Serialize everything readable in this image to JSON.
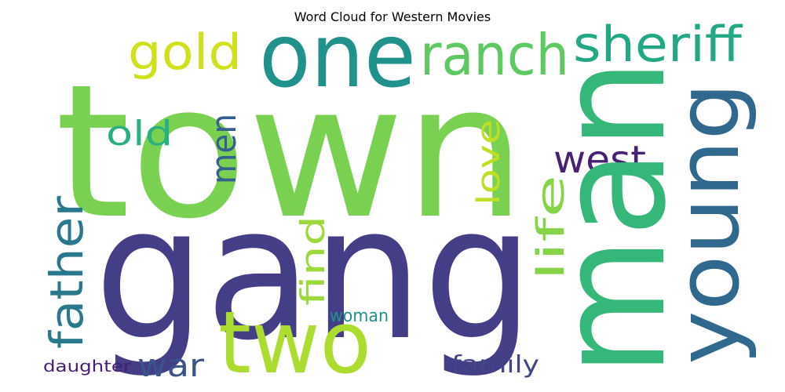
{
  "title": "Word Cloud for Western Movies",
  "words": [
    {
      "text": "town",
      "color": "#7ad151"
    },
    {
      "text": "gang",
      "color": "#433e85"
    },
    {
      "text": "man",
      "color": "#35b779"
    },
    {
      "text": "one",
      "color": "#21918c"
    },
    {
      "text": "young",
      "color": "#31688e"
    },
    {
      "text": "two",
      "color": "#addc30"
    },
    {
      "text": "ranch",
      "color": "#5ec962"
    },
    {
      "text": "sheriff",
      "color": "#22a884"
    },
    {
      "text": "gold",
      "color": "#d0e11c"
    },
    {
      "text": "west",
      "color": "#482173"
    },
    {
      "text": "father",
      "color": "#2a788e"
    },
    {
      "text": "old",
      "color": "#2ab07f"
    },
    {
      "text": "men",
      "color": "#355f8d"
    },
    {
      "text": "love",
      "color": "#bddf26"
    },
    {
      "text": "life",
      "color": "#86d549"
    },
    {
      "text": "find",
      "color": "#9bd93c"
    },
    {
      "text": "war",
      "color": "#3b528b"
    },
    {
      "text": "woman",
      "color": "#21918c"
    },
    {
      "text": "family",
      "color": "#414487"
    },
    {
      "text": "daughter",
      "color": "#481f70"
    }
  ]
}
